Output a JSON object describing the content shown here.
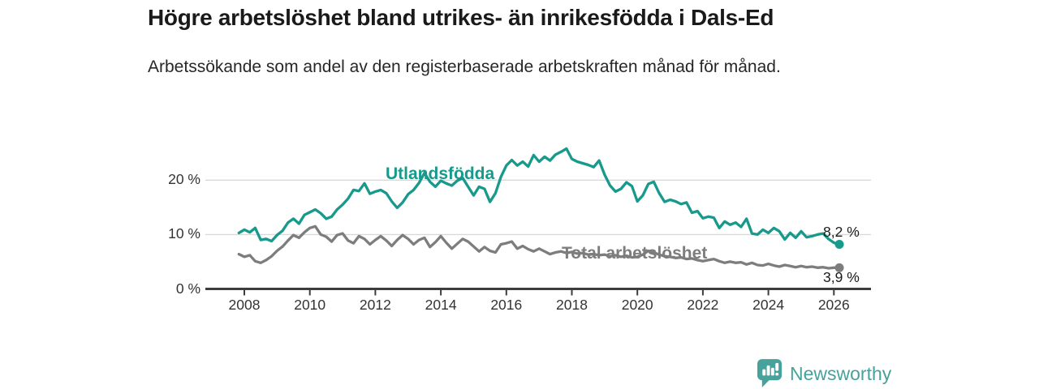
{
  "chart_data": {
    "type": "line",
    "title": "Högre arbetslöshet bland utrikes- än inrikesfödda i Dals-Ed",
    "subtitle": "Arbetssökande som andel av den registerbaserade arbetskraften månad för månad.",
    "grid": "horizontal-only",
    "legend_position": "inline-labels",
    "x_start": 2007.8333,
    "x_step": 0.16667,
    "x_axis": {
      "ticks": [
        {
          "value": 2008,
          "label": "2008"
        },
        {
          "value": 2010,
          "label": "2010"
        },
        {
          "value": 2012,
          "label": "2012"
        },
        {
          "value": 2014,
          "label": "2014"
        },
        {
          "value": 2016,
          "label": "2016"
        },
        {
          "value": 2018,
          "label": "2018"
        },
        {
          "value": 2020,
          "label": "2020"
        },
        {
          "value": 2022,
          "label": "2022"
        },
        {
          "value": 2024,
          "label": "2024"
        },
        {
          "value": 2026,
          "label": "2026"
        }
      ]
    },
    "y_axis": {
      "unit": "%",
      "ylim": [
        0,
        28
      ],
      "gridline_values": [
        10,
        20
      ],
      "ticks": [
        {
          "value": 0,
          "label": "0 %"
        },
        {
          "value": 10,
          "label": "10 %"
        },
        {
          "value": 20,
          "label": "20 %"
        }
      ]
    },
    "series": [
      {
        "name": "Utlandsfödda",
        "color": "#17998b",
        "end_value": 8.2,
        "end_label": "8,2 %",
        "values": [
          10.3,
          10.9,
          10.4,
          11.2,
          9.0,
          9.2,
          8.8,
          9.9,
          10.7,
          12.2,
          12.9,
          12.0,
          13.6,
          14.1,
          14.6,
          13.9,
          12.9,
          13.3,
          14.6,
          15.5,
          16.6,
          18.2,
          18.0,
          19.4,
          17.5,
          17.9,
          18.2,
          17.6,
          16.1,
          14.9,
          15.9,
          17.4,
          18.2,
          19.5,
          21.3,
          19.7,
          18.8,
          19.9,
          19.4,
          19.0,
          19.9,
          20.4,
          18.8,
          17.2,
          18.8,
          18.4,
          16.0,
          17.6,
          20.6,
          22.7,
          23.7,
          22.7,
          23.4,
          22.5,
          24.6,
          23.4,
          24.3,
          23.6,
          24.7,
          25.2,
          25.8,
          23.9,
          23.4,
          23.1,
          22.8,
          22.4,
          23.6,
          21.0,
          19.0,
          17.9,
          18.4,
          19.6,
          18.9,
          16.1,
          17.2,
          19.3,
          19.7,
          17.6,
          16.0,
          16.4,
          16.1,
          15.6,
          15.9,
          14.0,
          14.3,
          13.0,
          13.3,
          13.1,
          11.2,
          12.4,
          11.8,
          12.2,
          11.4,
          12.9,
          10.2,
          10.0,
          10.9,
          10.3,
          11.2,
          10.6,
          9.1,
          10.3,
          9.4,
          10.6,
          9.5,
          9.7,
          10.0,
          10.2,
          9.2,
          8.5,
          8.2
        ]
      },
      {
        "name": "Total arbetslöshet",
        "color": "#7d7d7d",
        "end_value": 3.9,
        "end_label": "3,9 %",
        "values": [
          6.4,
          5.9,
          6.2,
          5.1,
          4.8,
          5.3,
          6.0,
          7.0,
          7.8,
          8.9,
          9.9,
          9.4,
          10.4,
          11.2,
          11.5,
          10.0,
          9.6,
          8.7,
          9.9,
          10.2,
          8.9,
          8.4,
          9.7,
          9.2,
          8.2,
          9.0,
          9.7,
          8.9,
          7.9,
          9.0,
          9.9,
          9.2,
          8.2,
          9.0,
          9.4,
          7.7,
          8.6,
          9.7,
          8.5,
          7.4,
          8.3,
          9.2,
          8.7,
          7.8,
          6.9,
          7.7,
          7.0,
          6.7,
          8.2,
          8.4,
          8.7,
          7.4,
          7.9,
          7.3,
          6.9,
          7.4,
          6.9,
          6.4,
          6.7,
          6.9,
          6.6,
          6.8,
          6.5,
          6.6,
          6.3,
          6.4,
          6.2,
          6.3,
          6.0,
          6.2,
          5.9,
          6.1,
          5.8,
          5.9,
          6.3,
          7.0,
          6.7,
          6.3,
          6.0,
          5.9,
          5.7,
          5.8,
          5.5,
          5.6,
          5.3,
          5.1,
          5.3,
          5.5,
          5.1,
          4.8,
          5.0,
          4.8,
          4.9,
          4.5,
          4.8,
          4.4,
          4.3,
          4.6,
          4.3,
          4.1,
          4.4,
          4.2,
          4.0,
          4.2,
          4.0,
          4.1,
          3.9,
          4.0,
          3.8,
          3.9,
          3.9
        ]
      }
    ]
  },
  "colors": {
    "axis": "#3d3d3d",
    "gridline": "#d9d9d9",
    "tick_text": "#333333",
    "title_text": "#1a1a1a",
    "brand": "#46a29a"
  },
  "footer": {
    "brand": "Newsworthy"
  }
}
